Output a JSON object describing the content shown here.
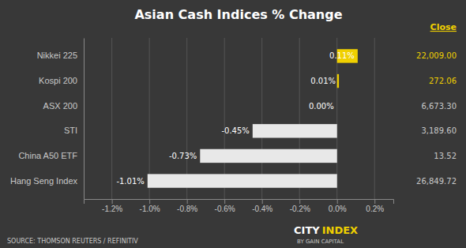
{
  "chart_data": {
    "type": "bar",
    "orientation": "horizontal",
    "title": "Asian Cash Indices % Change",
    "categories": [
      "Nikkei 225",
      "Kospi 200",
      "ASX 200",
      "STI",
      "China A50 ETF",
      "Hang Seng Index"
    ],
    "values": [
      0.11,
      0.01,
      0.0,
      -0.45,
      -0.73,
      -1.01
    ],
    "value_labels": [
      "0.11%",
      "0.01%",
      "0.00%",
      "-0.45%",
      "-0.73%",
      "-1.01%"
    ],
    "data_labels": true,
    "colors": [
      "#f0d000",
      "#f0d000",
      "#e8e8e8",
      "#e8e8e8",
      "#e8e8e8",
      "#e8e8e8"
    ],
    "xlim": [
      -1.35,
      0.3
    ],
    "xticks": [
      {
        "value": -1.2,
        "label": "-1.2%"
      },
      {
        "value": -1.0,
        "label": "-1.0%"
      },
      {
        "value": -0.8,
        "label": "-0.8%"
      },
      {
        "value": -0.6,
        "label": "-0.6%"
      },
      {
        "value": -0.4,
        "label": "-0.4%"
      },
      {
        "value": -0.2,
        "label": "-0.2%"
      },
      {
        "value": 0.0,
        "label": "0.0%"
      },
      {
        "value": 0.2,
        "label": "0.2%"
      }
    ],
    "grid": true,
    "annotations": [
      "Close",
      "22,009.00",
      "272.06",
      "6,673.30",
      "3,189.60",
      "13.52",
      "26,849.72",
      "SOURCE: THOMSON REUTERS / REFINITIV",
      "CITY",
      "INDEX",
      "BY GAIN CAPITAL"
    ]
  }
}
